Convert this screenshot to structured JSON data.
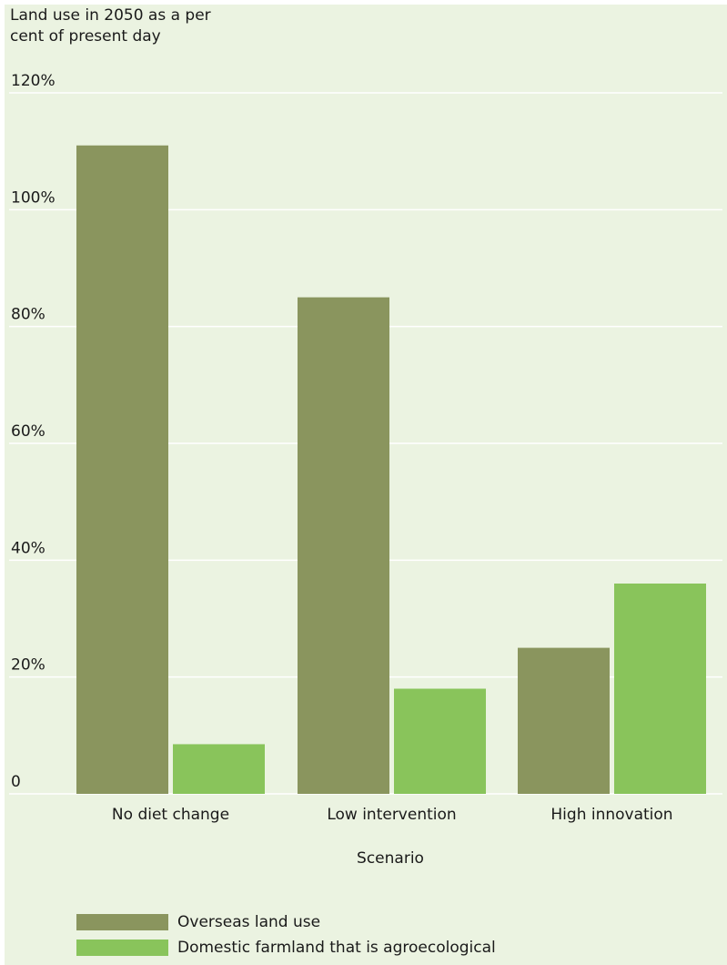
{
  "chart_data": {
    "type": "bar",
    "ylabel": "Land use in 2050 as a per cent of present day",
    "xlabel": "Scenario",
    "categories": [
      "No diet change",
      "Low intervention",
      "High innovation"
    ],
    "series": [
      {
        "name": "Overseas land use",
        "color": "#8a955e",
        "values": [
          111,
          85,
          25
        ]
      },
      {
        "name": "Domestic farmland that is agroecological",
        "color": "#89c45b",
        "values": [
          8.5,
          18,
          36
        ]
      }
    ],
    "ylim": [
      0,
      120
    ],
    "yticks": [
      0,
      20,
      40,
      60,
      80,
      100,
      120
    ],
    "ytick_labels": [
      "0",
      "20%",
      "40%",
      "60%",
      "80%",
      "100%",
      "120%"
    ],
    "grid": true,
    "legend": "bottom-left"
  }
}
